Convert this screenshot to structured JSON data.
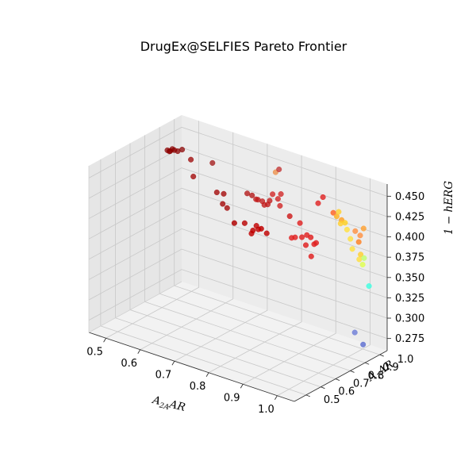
{
  "chart_data": {
    "type": "scatter",
    "projection": "3d",
    "title": "DrugEx@SELFIES Pareto Frontier",
    "xlabel": "A2AAR",
    "ylabel": "A1AR",
    "zlabel": "1 - hERG",
    "xlim": [
      0.45,
      1.05
    ],
    "ylim": [
      0.42,
      1.05
    ],
    "zlim": [
      0.26,
      0.465
    ],
    "xticks": [
      "0.5",
      "0.6",
      "0.7",
      "0.8",
      "0.9",
      "1.0"
    ],
    "yticks": [
      "0.5",
      "0.6",
      "0.7",
      "0.8",
      "0.9",
      "1.0"
    ],
    "zticks": [
      "0.275",
      "0.300",
      "0.325",
      "0.350",
      "0.375",
      "0.400",
      "0.425",
      "0.450"
    ],
    "grid": true,
    "colormap": "jet",
    "points": [
      {
        "x": 0.46,
        "y": 0.93,
        "z": 0.435,
        "color": "#8b0000"
      },
      {
        "x": 0.47,
        "y": 0.94,
        "z": 0.437,
        "color": "#8b0000"
      },
      {
        "x": 0.48,
        "y": 0.93,
        "z": 0.438,
        "color": "#8b0000"
      },
      {
        "x": 0.46,
        "y": 0.95,
        "z": 0.432,
        "color": "#8b0000"
      },
      {
        "x": 0.49,
        "y": 0.96,
        "z": 0.437,
        "color": "#8b0000"
      },
      {
        "x": 0.47,
        "y": 0.92,
        "z": 0.436,
        "color": "#8b0000"
      },
      {
        "x": 0.49,
        "y": 0.93,
        "z": 0.438,
        "color": "#8b0000"
      },
      {
        "x": 0.52,
        "y": 0.95,
        "z": 0.43,
        "color": "#9b0000"
      },
      {
        "x": 0.54,
        "y": 0.92,
        "z": 0.415,
        "color": "#a00000"
      },
      {
        "x": 0.57,
        "y": 0.98,
        "z": 0.43,
        "color": "#a01010"
      },
      {
        "x": 0.6,
        "y": 0.94,
        "z": 0.402,
        "color": "#a00000"
      },
      {
        "x": 0.62,
        "y": 0.94,
        "z": 0.403,
        "color": "#a00000"
      },
      {
        "x": 0.63,
        "y": 0.94,
        "z": 0.387,
        "color": "#a00000"
      },
      {
        "x": 0.63,
        "y": 0.91,
        "z": 0.395,
        "color": "#a00000"
      },
      {
        "x": 0.68,
        "y": 0.96,
        "z": 0.41,
        "color": "#b01010"
      },
      {
        "x": 0.69,
        "y": 0.97,
        "z": 0.408,
        "color": "#b01010"
      },
      {
        "x": 0.71,
        "y": 0.95,
        "z": 0.408,
        "color": "#c01818"
      },
      {
        "x": 0.72,
        "y": 0.97,
        "z": 0.405,
        "color": "#c01818"
      },
      {
        "x": 0.72,
        "y": 0.94,
        "z": 0.41,
        "color": "#c01818"
      },
      {
        "x": 0.73,
        "y": 0.96,
        "z": 0.403,
        "color": "#c01818"
      },
      {
        "x": 0.74,
        "y": 0.96,
        "z": 0.405,
        "color": "#c01818"
      },
      {
        "x": 0.75,
        "y": 0.95,
        "z": 0.412,
        "color": "#c01818"
      },
      {
        "x": 0.75,
        "y": 0.97,
        "z": 0.418,
        "color": "#d02020"
      },
      {
        "x": 0.77,
        "y": 0.96,
        "z": 0.416,
        "color": "#d02020"
      },
      {
        "x": 0.77,
        "y": 0.98,
        "z": 0.42,
        "color": "#d02020"
      },
      {
        "x": 0.78,
        "y": 0.95,
        "z": 0.41,
        "color": "#d02020"
      },
      {
        "x": 0.76,
        "y": 0.99,
        "z": 0.448,
        "color": "#c03030"
      },
      {
        "x": 0.75,
        "y": 0.99,
        "z": 0.443,
        "color": "#ec8c44"
      },
      {
        "x": 0.8,
        "y": 0.97,
        "z": 0.398,
        "color": "#cc1010"
      },
      {
        "x": 0.72,
        "y": 0.85,
        "z": 0.39,
        "color": "#b80000"
      },
      {
        "x": 0.74,
        "y": 0.85,
        "z": 0.38,
        "color": "#c00000"
      },
      {
        "x": 0.75,
        "y": 0.86,
        "z": 0.39,
        "color": "#c00000"
      },
      {
        "x": 0.76,
        "y": 0.85,
        "z": 0.388,
        "color": "#c00000"
      },
      {
        "x": 0.78,
        "y": 0.86,
        "z": 0.385,
        "color": "#c00000"
      },
      {
        "x": 0.72,
        "y": 0.78,
        "z": 0.397,
        "color": "#b00000"
      },
      {
        "x": 0.77,
        "y": 0.79,
        "z": 0.394,
        "color": "#c00000"
      },
      {
        "x": 0.79,
        "y": 0.8,
        "z": 0.398,
        "color": "#c00000"
      },
      {
        "x": 0.84,
        "y": 0.89,
        "z": 0.385,
        "color": "#e02020"
      },
      {
        "x": 0.85,
        "y": 0.89,
        "z": 0.387,
        "color": "#e02020"
      },
      {
        "x": 0.87,
        "y": 0.89,
        "z": 0.39,
        "color": "#e02020"
      },
      {
        "x": 0.88,
        "y": 0.9,
        "z": 0.393,
        "color": "#e02020"
      },
      {
        "x": 0.86,
        "y": 0.9,
        "z": 0.405,
        "color": "#e02020"
      },
      {
        "x": 0.9,
        "y": 0.88,
        "z": 0.395,
        "color": "#e02020"
      },
      {
        "x": 0.89,
        "y": 0.87,
        "z": 0.385,
        "color": "#e02020"
      },
      {
        "x": 0.91,
        "y": 0.88,
        "z": 0.388,
        "color": "#e02020"
      },
      {
        "x": 0.92,
        "y": 0.87,
        "z": 0.392,
        "color": "#e02020"
      },
      {
        "x": 0.91,
        "y": 0.86,
        "z": 0.375,
        "color": "#e02020"
      },
      {
        "x": 0.9,
        "y": 0.93,
        "z": 0.432,
        "color": "#e02020"
      },
      {
        "x": 0.91,
        "y": 0.94,
        "z": 0.44,
        "color": "#e02020"
      },
      {
        "x": 0.94,
        "y": 0.94,
        "z": 0.425,
        "color": "#ff6020"
      },
      {
        "x": 0.95,
        "y": 0.94,
        "z": 0.422,
        "color": "#ffb020"
      },
      {
        "x": 0.96,
        "y": 0.95,
        "z": 0.418,
        "color": "#ffa020"
      },
      {
        "x": 0.97,
        "y": 0.95,
        "z": 0.416,
        "color": "#ffd020"
      },
      {
        "x": 0.98,
        "y": 0.94,
        "z": 0.41,
        "color": "#ffe040"
      },
      {
        "x": 0.96,
        "y": 0.93,
        "z": 0.43,
        "color": "#ffd030"
      },
      {
        "x": 0.97,
        "y": 0.92,
        "z": 0.418,
        "color": "#ffd030"
      },
      {
        "x": 0.99,
        "y": 0.94,
        "z": 0.4,
        "color": "#ffe040"
      },
      {
        "x": 1.0,
        "y": 0.95,
        "z": 0.41,
        "color": "#ff9040"
      },
      {
        "x": 1.01,
        "y": 0.96,
        "z": 0.405,
        "color": "#ff9040"
      },
      {
        "x": 1.01,
        "y": 0.95,
        "z": 0.398,
        "color": "#ff8020"
      },
      {
        "x": 1.02,
        "y": 0.96,
        "z": 0.415,
        "color": "#ffa030"
      },
      {
        "x": 1.0,
        "y": 0.93,
        "z": 0.39,
        "color": "#ffe040"
      },
      {
        "x": 1.02,
        "y": 0.94,
        "z": 0.385,
        "color": "#ffd030"
      },
      {
        "x": 1.02,
        "y": 0.93,
        "z": 0.38,
        "color": "#ffe040"
      },
      {
        "x": 1.03,
        "y": 0.93,
        "z": 0.375,
        "color": "#e0ff50"
      },
      {
        "x": 1.03,
        "y": 0.94,
        "z": 0.382,
        "color": "#c0ff70"
      },
      {
        "x": 1.04,
        "y": 0.95,
        "z": 0.348,
        "color": "#40ffe0"
      },
      {
        "x": 1.02,
        "y": 0.9,
        "z": 0.293,
        "color": "#7080d8"
      },
      {
        "x": 1.04,
        "y": 0.91,
        "z": 0.28,
        "color": "#6070d0"
      }
    ]
  }
}
